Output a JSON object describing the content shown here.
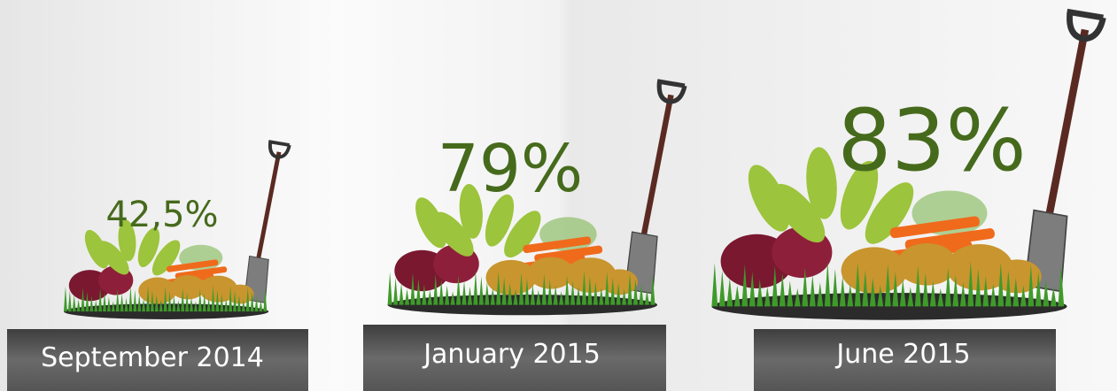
{
  "items": [
    {
      "value": "42,5%",
      "date": "September 2014"
    },
    {
      "value": "79%",
      "date": "January 2015"
    },
    {
      "value": "83%",
      "date": "June 2015"
    }
  ]
}
